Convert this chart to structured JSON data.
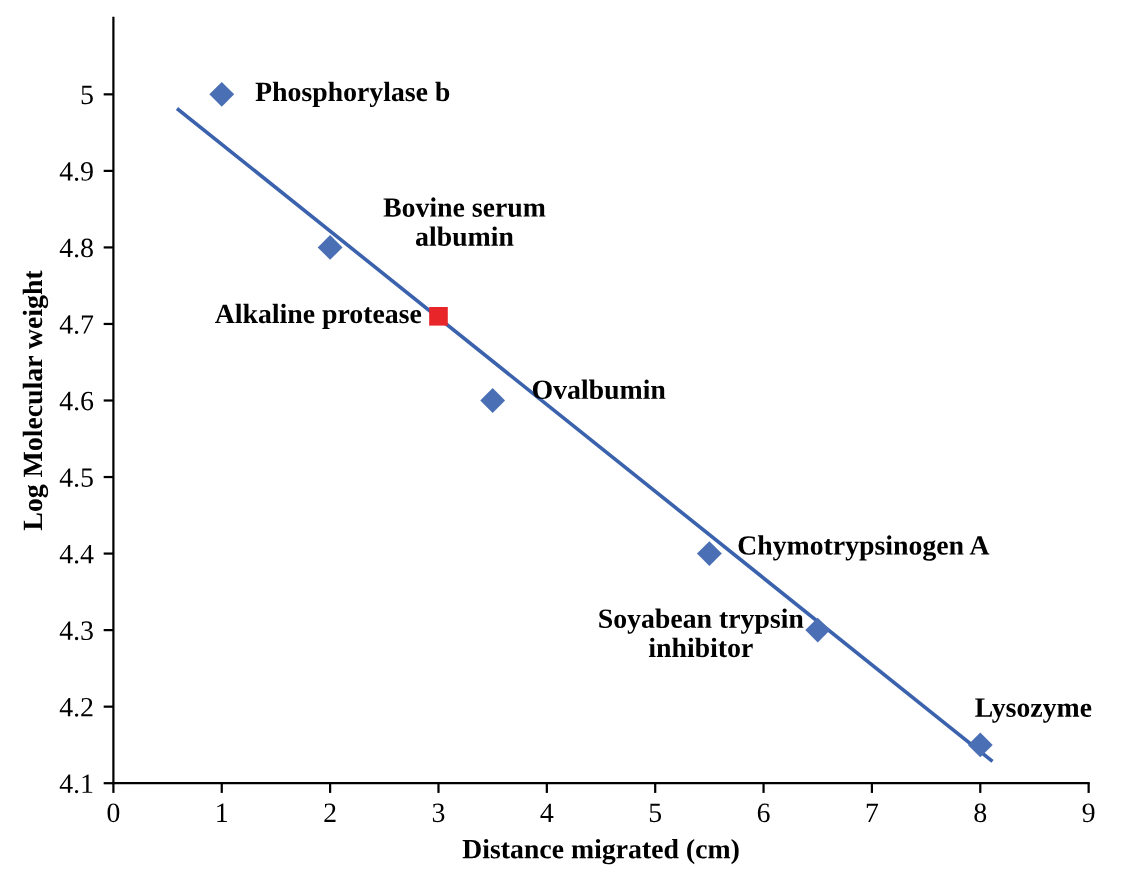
{
  "chart_data": {
    "type": "scatter",
    "xlabel": "Distance migrated (cm)",
    "ylabel": "Log Molecular weight",
    "xlim": [
      0,
      9
    ],
    "ylim": [
      4.1,
      5.1
    ],
    "xticks": [
      0,
      1,
      2,
      3,
      4,
      5,
      6,
      7,
      8,
      9
    ],
    "yticks": [
      4.1,
      4.2,
      4.3,
      4.4,
      4.5,
      4.6,
      4.7,
      4.8,
      4.9,
      5
    ],
    "grid": false,
    "legend": false,
    "series": [
      {
        "marker": "diamond",
        "color": "#4a6fb5",
        "x": [
          1,
          2,
          3.5,
          5.5,
          6.5,
          8
        ],
        "values": [
          5.0,
          4.8,
          4.6,
          4.4,
          4.3,
          4.15
        ]
      },
      {
        "marker": "square",
        "color": "#e8262a",
        "x": [
          3
        ],
        "values": [
          4.71
        ]
      },
      {
        "type": "line",
        "marker": "none",
        "color": "#3b62ad",
        "x": [
          0.6,
          8.1
        ],
        "values": [
          4.98,
          4.13
        ]
      }
    ],
    "annotations": [
      {
        "text": "Phosphorylase b",
        "x": 1,
        "y": 5.0
      },
      "Bovine serum\nalbumin",
      {
        "text": "Alkaline protease",
        "x": 3,
        "y": 4.71
      },
      {
        "text": "Ovalbumin",
        "x": 3.5,
        "y": 4.6
      },
      {
        "text": "Chymotrypsinogen A",
        "x": 5.5,
        "y": 4.4
      },
      {
        "text": "Soyabean trypsin\ninhibitor",
        "x": 6.5,
        "y": 4.3
      },
      {
        "text": "Lysozyme",
        "x": 8,
        "y": 4.15
      }
    ]
  }
}
